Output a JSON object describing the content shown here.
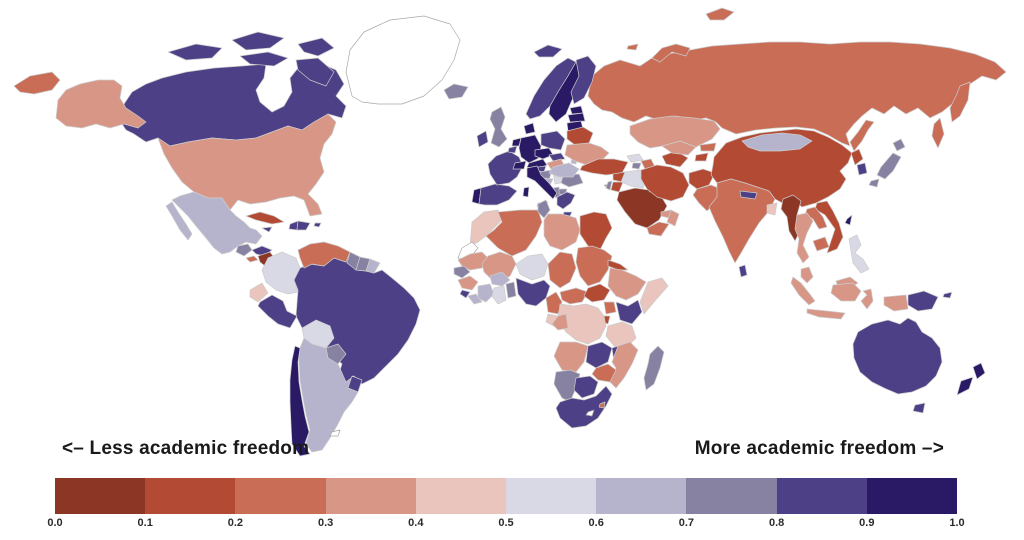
{
  "legend": {
    "less_label": "<– Less academic freedom",
    "more_label": "More academic freedom –>"
  },
  "chart_data": {
    "type": "heatmap",
    "subtype": "choropleth_world_map",
    "metric": "Academic freedom index",
    "legend_position": "bottom",
    "ocean_color": "#ffffff",
    "border_color": "#cccccc",
    "no_data_color": "#ffffff",
    "no_data_stroke": "#a8a8a8",
    "scale": {
      "min": 0.0,
      "max": 1.0,
      "tick_labels": [
        "0.0",
        "0.1",
        "0.2",
        "0.3",
        "0.4",
        "0.5",
        "0.6",
        "0.7",
        "0.8",
        "0.9",
        "1.0"
      ],
      "colors": [
        "#8C3726",
        "#B34A33",
        "#C96D57",
        "#D89687",
        "#E9C5BD",
        "#D9D9E5",
        "#B5B4CC",
        "#8781A2",
        "#4E4086",
        "#2A1A66"
      ]
    },
    "regions": {
      "usa": 0.35,
      "canada": 0.85,
      "greenland": null,
      "mexico": 0.65,
      "guatemala": 0.75,
      "honduras": 0.85,
      "el-salvador": 0.25,
      "nicaragua": 0.05,
      "costa-rica": 0.95,
      "panama": 0.9,
      "cuba": 0.15,
      "jamaica": 0.85,
      "haiti": 0.85,
      "dominican-republic": 0.85,
      "puerto-rico": 0.85,
      "colombia": 0.55,
      "venezuela": 0.25,
      "guyana": 0.75,
      "suriname": 0.75,
      "french-guiana": 0.65,
      "ecuador": 0.45,
      "peru": 0.82,
      "brazil": 0.85,
      "bolivia": 0.55,
      "paraguay": 0.75,
      "uruguay": 0.85,
      "argentina": 0.65,
      "chile": 0.95,
      "falkland-islands": null,
      "iceland": 0.72,
      "ireland": 0.85,
      "united-kingdom": 0.75,
      "portugal": 0.95,
      "spain": 0.85,
      "france": 0.85,
      "belgium": 0.85,
      "netherlands": 0.92,
      "germany": 0.92,
      "denmark": 0.95,
      "norway": 0.88,
      "sweden": 0.95,
      "finland": 0.85,
      "estonia": 0.92,
      "latvia": 0.95,
      "lithuania": 0.92,
      "belarus": 0.15,
      "poland": 0.85,
      "czechia": 0.95,
      "slovakia": 0.85,
      "switzerland": 0.92,
      "austria": 0.95,
      "hungary": 0.35,
      "slovenia": 0.88,
      "croatia": 0.78,
      "bosnia-herzegovina": 0.65,
      "serbia": 0.55,
      "albania": 0.75,
      "north-macedonia": 0.72,
      "bulgaria": 0.72,
      "romania": 0.65,
      "moldova": 0.65,
      "ukraine": 0.35,
      "italy": 0.95,
      "greece": 0.82,
      "russia": 0.25,
      "morocco": 0.45,
      "western-sahara": null,
      "algeria": 0.25,
      "tunisia": 0.75,
      "libya": 0.35,
      "egypt": 0.15,
      "mauritania": 0.35,
      "mali": 0.35,
      "niger": 0.55,
      "chad": 0.25,
      "sudan": 0.25,
      "eritrea": 0.15,
      "ethiopia": 0.35,
      "somalia": 0.45,
      "senegal": 0.75,
      "guinea": 0.35,
      "sierra-leone": 0.85,
      "liberia": 0.65,
      "cote-divoire": 0.65,
      "ghana": 0.55,
      "burkina-faso": 0.62,
      "benin": 0.75,
      "nigeria": 0.85,
      "cameroon": 0.25,
      "central-african-republic": 0.25,
      "south-sudan": 0.15,
      "uganda": 0.25,
      "rwanda": 0.15,
      "kenya": 0.85,
      "democratic-republic-of-congo": 0.45,
      "gabon": 0.45,
      "republic-of-congo": 0.35,
      "tanzania": 0.45,
      "angola": 0.35,
      "zambia": 0.85,
      "malawi": 0.85,
      "mozambique": 0.35,
      "zimbabwe": 0.25,
      "namibia": 0.75,
      "botswana": 0.85,
      "south-africa": 0.85,
      "lesotho": null,
      "eswatini": 0.25,
      "madagascar": 0.72,
      "turkey": 0.15,
      "cyprus": 0.75,
      "georgia": 0.55,
      "armenia": 0.75,
      "azerbaijan": 0.25,
      "syria": 0.15,
      "israel": 0.75,
      "jordan": 0.15,
      "iraq": 0.55,
      "saudi-arabia": 0.05,
      "kuwait": 0.25,
      "united-arab-emirates": 0.35,
      "oman": 0.35,
      "yemen": 0.25,
      "iran": 0.15,
      "afghanistan": 0.15,
      "turkmenistan": 0.15,
      "uzbekistan": 0.35,
      "tajikistan": 0.15,
      "kyrgyzstan": 0.25,
      "kazakhstan": 0.35,
      "pakistan": 0.25,
      "india": 0.25,
      "nepal": 0.85,
      "bangladesh": 0.45,
      "sri-lanka": 0.85,
      "myanmar": 0.05,
      "thailand": 0.35,
      "laos": 0.25,
      "vietnam": 0.15,
      "cambodia": 0.25,
      "malaysia": 0.35,
      "indonesia": 0.35,
      "philippines": 0.55,
      "taiwan": 0.95,
      "china": 0.15,
      "mongolia": 0.65,
      "north-korea": 0.15,
      "south-korea": 0.85,
      "japan": 0.75,
      "papua-new-guinea": 0.85,
      "australia": 0.85,
      "new-zealand": 0.95
    }
  }
}
